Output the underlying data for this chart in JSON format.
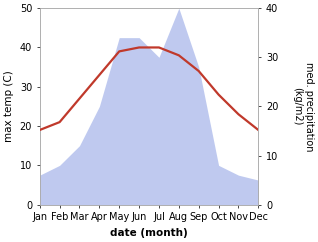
{
  "months": [
    "Jan",
    "Feb",
    "Mar",
    "Apr",
    "May",
    "Jun",
    "Jul",
    "Aug",
    "Sep",
    "Oct",
    "Nov",
    "Dec"
  ],
  "month_indices": [
    1,
    2,
    3,
    4,
    5,
    6,
    7,
    8,
    9,
    10,
    11,
    12
  ],
  "temperature": [
    19,
    21,
    27,
    33,
    39,
    40,
    40,
    38,
    34,
    28,
    23,
    19
  ],
  "precipitation": [
    6,
    8,
    12,
    20,
    34,
    34,
    30,
    40,
    28,
    8,
    6,
    5
  ],
  "temp_color": "#c0392b",
  "precip_color": "#b8c4ee",
  "temp_ylim": [
    0,
    50
  ],
  "precip_ylim": [
    0,
    40
  ],
  "temp_yticks": [
    0,
    10,
    20,
    30,
    40,
    50
  ],
  "precip_yticks": [
    0,
    10,
    20,
    30,
    40
  ],
  "xlabel": "date (month)",
  "ylabel_left": "max temp (C)",
  "ylabel_right": "med. precipitation\n(kg/m2)",
  "bg_color": "#ffffff",
  "label_fontsize": 7.5,
  "tick_fontsize": 7
}
